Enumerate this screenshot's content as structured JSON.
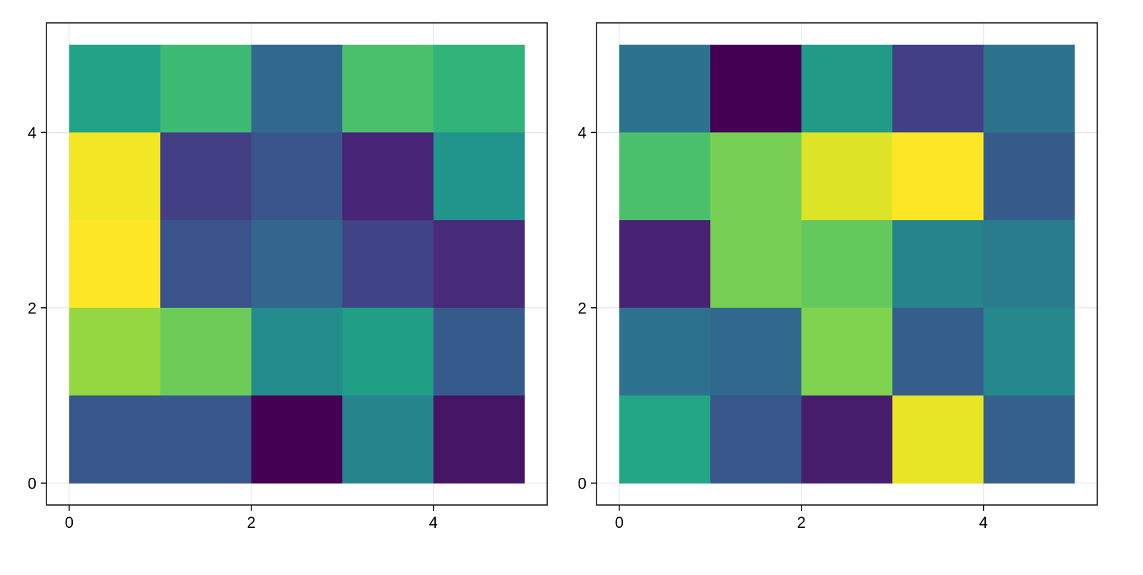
{
  "chart_data": [
    {
      "type": "heatmap",
      "colormap": "viridis",
      "x_edges": [
        0,
        1,
        2,
        3,
        4,
        5
      ],
      "y_edges": [
        0,
        1,
        2,
        3,
        4,
        5
      ],
      "xlim": [
        -0.25,
        5.25
      ],
      "ylim": [
        -0.25,
        5.25
      ],
      "xticks": [
        0,
        2,
        4
      ],
      "yticks": [
        0,
        2,
        4
      ],
      "xtick_labels": [
        "0",
        "2",
        "4"
      ],
      "ytick_labels": [
        "0",
        "2",
        "4"
      ],
      "grid": true,
      "values_rows_top_to_bottom": [
        [
          0.72,
          0.8,
          0.42,
          0.82,
          0.78
        ],
        [
          0.99,
          0.23,
          0.33,
          0.13,
          0.64
        ],
        [
          1.0,
          0.32,
          0.41,
          0.25,
          0.15
        ],
        [
          0.9,
          0.86,
          0.6,
          0.7,
          0.35
        ],
        [
          0.34,
          0.34,
          0.0,
          0.56,
          0.07
        ]
      ]
    },
    {
      "type": "heatmap",
      "colormap": "viridis",
      "x_edges": [
        0,
        1,
        2,
        3,
        4,
        5
      ],
      "y_edges": [
        0,
        1,
        2,
        3,
        4,
        5
      ],
      "xlim": [
        -0.25,
        5.25
      ],
      "ylim": [
        -0.25,
        5.25
      ],
      "xticks": [
        0,
        2,
        4
      ],
      "yticks": [
        0,
        2,
        4
      ],
      "xtick_labels": [
        "0",
        "2",
        "4"
      ],
      "ytick_labels": [
        "0",
        "2",
        "4"
      ],
      "grid": true,
      "values_rows_top_to_bottom": [
        [
          0.48,
          0.0,
          0.68,
          0.23,
          0.48
        ],
        [
          0.82,
          0.87,
          0.97,
          1.0,
          0.36
        ],
        [
          0.12,
          0.87,
          0.85,
          0.56,
          0.52
        ],
        [
          0.47,
          0.42,
          0.88,
          0.37,
          0.58
        ],
        [
          0.74,
          0.34,
          0.1,
          0.98,
          0.38
        ]
      ]
    }
  ]
}
